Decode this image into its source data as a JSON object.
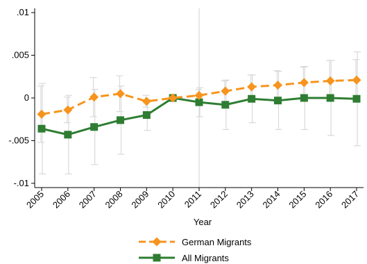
{
  "chart_data": {
    "type": "line",
    "xlabel": "Year",
    "ylabel": "",
    "ylim": [
      -0.0105,
      0.0105
    ],
    "yticks": [
      -0.01,
      -0.005,
      0,
      0.005,
      0.01
    ],
    "ytick_labels": [
      "-.01",
      "-.005",
      "0",
      ".005",
      ".01"
    ],
    "categories": [
      "2005",
      "2006",
      "2007",
      "2008",
      "2009",
      "2010",
      "2011",
      "2012",
      "2013",
      "2014",
      "2015",
      "2016",
      "2017"
    ],
    "reference_line_x": "2011",
    "legend_position": "bottom",
    "series": [
      {
        "name": "German Migrants",
        "color": "#f7941d",
        "marker": "diamond",
        "dash": true,
        "values": [
          -0.0019,
          -0.0014,
          0.0001,
          0.0005,
          -0.0004,
          0.0,
          0.0003,
          0.0008,
          0.0013,
          0.0015,
          0.0018,
          0.002,
          0.0021
        ],
        "ci_low": [
          -0.0052,
          -0.0029,
          -0.0022,
          -0.0016,
          -0.0011,
          0.0,
          -0.0004,
          -0.0004,
          -0.0001,
          -0.0002,
          0.0,
          -0.0004,
          -0.0003
        ],
        "ci_high": [
          0.0014,
          0.0001,
          0.0024,
          0.0026,
          0.0003,
          0.0,
          0.001,
          0.002,
          0.0027,
          0.0032,
          0.0036,
          0.0044,
          0.0045
        ]
      },
      {
        "name": "All Migrants",
        "color": "#2e7d32",
        "marker": "square",
        "dash": false,
        "values": [
          -0.0036,
          -0.0043,
          -0.0034,
          -0.0026,
          -0.002,
          0.0,
          -0.0005,
          -0.0008,
          -0.0001,
          -0.0003,
          0.0,
          0.0,
          -0.0001
        ],
        "ci_low": [
          -0.0089,
          -0.0089,
          -0.0078,
          -0.0066,
          -0.0038,
          0.0,
          -0.0022,
          -0.0037,
          -0.0029,
          -0.0037,
          -0.0037,
          -0.0044,
          -0.0056
        ],
        "ci_high": [
          0.0017,
          0.0003,
          0.001,
          0.0014,
          -0.0002,
          0.0,
          0.0012,
          0.0021,
          0.0027,
          0.0031,
          0.0037,
          0.0044,
          0.0054
        ]
      }
    ]
  }
}
